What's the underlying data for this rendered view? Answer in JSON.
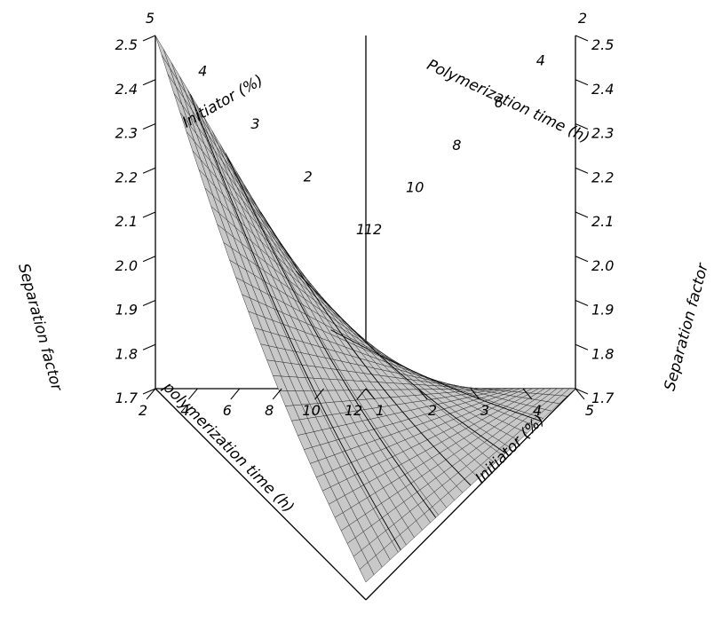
{
  "chart_data": {
    "type": "surface",
    "title": "",
    "x_axis": {
      "label": "Initiator (%)",
      "range": [
        1,
        5
      ],
      "ticks": [
        "1",
        "2",
        "3",
        "4",
        "5"
      ]
    },
    "y_axis": {
      "label": "polymerization time (h)",
      "range": [
        2,
        12
      ],
      "ticks": [
        "2",
        "4",
        "6",
        "8",
        "10",
        "12"
      ]
    },
    "z_axis": {
      "label": "Separation factor",
      "range": [
        1.7,
        2.5
      ],
      "ticks": [
        "1.7",
        "1.8",
        "1.9",
        "2.0",
        "2.1",
        "2.2",
        "2.3",
        "2.4",
        "2.5"
      ]
    },
    "back_x_axis_label": "Initiator (%)",
    "back_y_axis_label": "Polymerization time (h)",
    "back_z_axis_label": "Separation factor",
    "corner_values": [
      {
        "initiator": 1,
        "time": 12,
        "separation_factor": 1.7
      },
      {
        "initiator": 1,
        "time": 2,
        "separation_factor": 2.5
      },
      {
        "initiator": 5,
        "time": 2,
        "separation_factor": 1.74
      },
      {
        "initiator": 5,
        "time": 12,
        "separation_factor": 1.7
      }
    ],
    "grid": false,
    "surface_color": "#c8c8c8",
    "mesh_color": "#222222"
  }
}
